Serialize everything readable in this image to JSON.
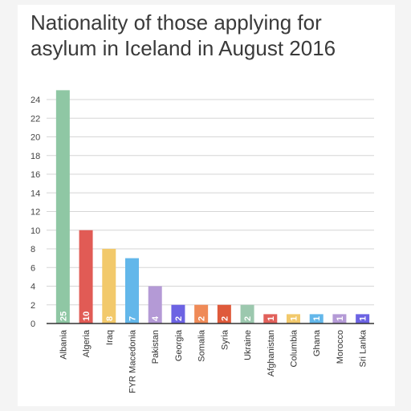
{
  "chart_data": {
    "type": "bar",
    "title": "Nationality of those applying for asylum in Iceland in August 2016",
    "xlabel": "",
    "ylabel": "",
    "ylim": [
      0,
      24
    ],
    "yticks": [
      0,
      2,
      4,
      6,
      8,
      10,
      12,
      14,
      16,
      18,
      20,
      22,
      24
    ],
    "grid": true,
    "legend": "none",
    "categories": [
      "Albania",
      "Algeria",
      "Iraq",
      "FYR Macedonia",
      "Pakistan",
      "Georgia",
      "Somalia",
      "Syria",
      "Ukraine",
      "Afghanistan",
      "Columbia",
      "Ghana",
      "Morocco",
      "Sri Lanka"
    ],
    "values": [
      25,
      10,
      8,
      7,
      4,
      2,
      2,
      2,
      2,
      1,
      1,
      1,
      1,
      1
    ],
    "colors": [
      "#8fc7a4",
      "#e15b55",
      "#f2c96b",
      "#63b7ea",
      "#b49ad6",
      "#6c63e3",
      "#ef8a57",
      "#df5a3b",
      "#9cc8ae",
      "#e1605a",
      "#f2c96b",
      "#63b7ea",
      "#b49ad6",
      "#6c63e3"
    ]
  }
}
